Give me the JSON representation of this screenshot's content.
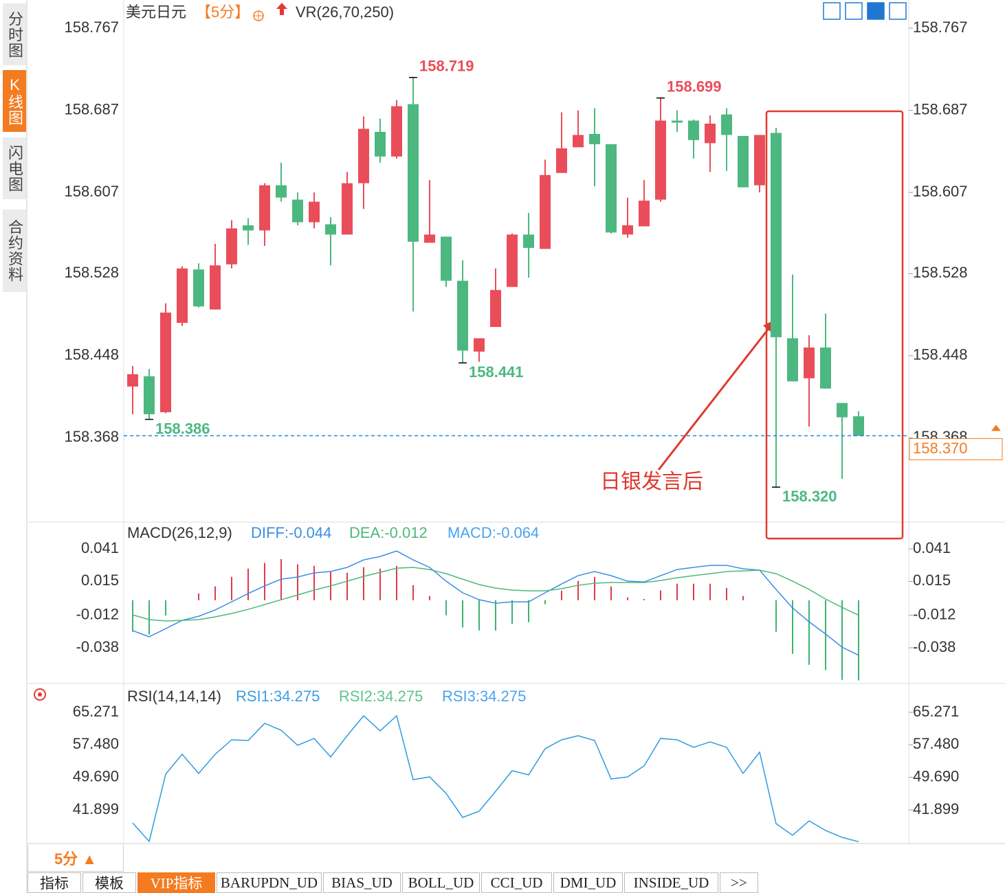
{
  "sidebar_tabs": [
    "分时图",
    "K线图",
    "闪电图",
    "合约资料"
  ],
  "chart_data": [
    {
      "type": "candlestick",
      "title": "美元日元",
      "period": "【5分】",
      "indicator": "VR(26,70,250)",
      "open": [
        158.418,
        158.428,
        158.393,
        158.48,
        158.532,
        158.493,
        158.537,
        158.575,
        158.57,
        158.614,
        158.6,
        158.578,
        158.576,
        158.566,
        158.616,
        158.666,
        158.642,
        158.693,
        158.558,
        158.564,
        158.521,
        158.452,
        158.476,
        158.515,
        158.566,
        158.552,
        158.626,
        158.651,
        158.664,
        158.654,
        158.566,
        158.574,
        158.6,
        158.677,
        158.677,
        158.655,
        158.683,
        158.662,
        158.614,
        158.665,
        158.465,
        158.426,
        158.456,
        158.402,
        158.389
      ],
      "high": [
        158.438,
        158.435,
        158.499,
        158.535,
        158.538,
        158.557,
        158.58,
        158.582,
        158.616,
        158.636,
        158.607,
        158.607,
        158.583,
        158.627,
        158.681,
        158.679,
        158.697,
        158.719,
        158.619,
        158.564,
        158.541,
        158.465,
        158.533,
        158.567,
        158.587,
        158.639,
        158.685,
        158.687,
        158.689,
        158.654,
        158.602,
        158.619,
        158.699,
        158.687,
        158.678,
        158.682,
        158.689,
        158.662,
        158.663,
        158.67,
        158.527,
        158.468,
        158.489,
        158.402,
        158.394
      ],
      "low": [
        158.391,
        158.386,
        158.392,
        158.477,
        158.495,
        158.493,
        158.533,
        158.556,
        158.555,
        158.598,
        158.575,
        158.572,
        158.536,
        158.566,
        158.591,
        158.636,
        158.64,
        158.491,
        158.558,
        158.515,
        158.441,
        158.442,
        158.476,
        158.515,
        158.524,
        158.552,
        158.626,
        158.651,
        158.613,
        158.567,
        158.563,
        158.574,
        158.598,
        158.666,
        158.64,
        158.627,
        158.628,
        158.612,
        158.607,
        158.32,
        158.423,
        158.379,
        158.416,
        158.328,
        158.37
      ],
      "close": [
        158.43,
        158.391,
        158.49,
        158.533,
        158.496,
        158.536,
        158.572,
        158.57,
        158.614,
        158.602,
        158.578,
        158.598,
        158.566,
        158.616,
        158.669,
        158.642,
        158.691,
        158.559,
        158.566,
        158.521,
        158.453,
        158.465,
        158.512,
        158.566,
        158.553,
        158.624,
        158.65,
        158.663,
        158.654,
        158.568,
        158.575,
        158.599,
        158.677,
        158.675,
        158.658,
        158.674,
        158.663,
        158.612,
        158.663,
        158.466,
        158.423,
        158.456,
        158.416,
        158.388,
        158.37
      ],
      "up_color": "#ea4d5a",
      "down_color": "#4cb880",
      "ylim": [
        158.288,
        158.767
      ],
      "yticks": [
        158.767,
        158.687,
        158.607,
        158.528,
        158.448,
        158.368
      ],
      "high_low_labels": [
        158.719,
        158.699,
        158.441,
        158.386,
        {
          "value": 158.32,
          "label": "158.320"
        }
      ],
      "current_price": {
        "value": 158.37,
        "label": "158.370"
      },
      "current_price_color": "#1e88e5",
      "annotation": "日银发言后"
    },
    {
      "type": "macd",
      "title": "MACD(26,12,9)",
      "series": [
        {
          "name": "DIFF:-0.044",
          "color": "#3a8ee6",
          "values": [
            -0.0243,
            -0.0292,
            -0.0227,
            -0.0161,
            -0.0128,
            -0.0078,
            -0.0013,
            0.0053,
            0.0114,
            0.0168,
            0.0185,
            0.0218,
            0.0229,
            0.0262,
            0.0322,
            0.0349,
            0.0393,
            0.0322,
            0.0262,
            0.0152,
            0.0059,
            0.0004,
            -0.0024,
            -0.0013,
            -0.0013,
            0.0059,
            0.013,
            0.0196,
            0.0229,
            0.0196,
            0.0152,
            0.0146,
            0.0196,
            0.0245,
            0.0262,
            0.0278,
            0.0278,
            0.0251,
            0.024,
            0.0086,
            -0.0062,
            -0.0172,
            -0.027,
            -0.0375,
            -0.044
          ]
        },
        {
          "name": "DEA:-0.012",
          "color": "#4cb87a",
          "values": [
            -0.0117,
            -0.0155,
            -0.0166,
            -0.0161,
            -0.0155,
            -0.0133,
            -0.0106,
            -0.0073,
            -0.0035,
            0.0004,
            0.0042,
            0.0081,
            0.0114,
            0.0152,
            0.019,
            0.0223,
            0.0256,
            0.0262,
            0.0245,
            0.0212,
            0.0168,
            0.0125,
            0.0097,
            0.0081,
            0.0075,
            0.0075,
            0.0092,
            0.0119,
            0.0136,
            0.0141,
            0.0141,
            0.0141,
            0.0157,
            0.0179,
            0.0196,
            0.0212,
            0.0229,
            0.0234,
            0.024,
            0.0212,
            0.0152,
            0.0086,
            0.0009,
            -0.0057,
            -0.012
          ]
        }
      ],
      "histogram": {
        "name": "MACD:-0.064",
        "color": "#4aa3f0",
        "up_color": "#e0394a",
        "down_color": "#3cb371",
        "values": [
          -0.0252,
          -0.0274,
          -0.0122,
          0,
          0.0054,
          0.011,
          0.0186,
          0.0252,
          0.0298,
          0.0328,
          0.0286,
          0.0274,
          0.023,
          0.022,
          0.0264,
          0.0252,
          0.0274,
          0.012,
          0.0034,
          -0.012,
          -0.0218,
          -0.0242,
          -0.0242,
          -0.0188,
          -0.0176,
          -0.0032,
          0.0076,
          0.0154,
          0.0186,
          0.011,
          0.0022,
          0.001,
          0.0078,
          0.0132,
          0.0132,
          0.0132,
          0.0098,
          0.0034,
          0,
          -0.0252,
          -0.0428,
          -0.0516,
          -0.0558,
          -0.0636,
          -0.064
        ]
      },
      "ylim": [
        -0.0654,
        0.0613
      ],
      "yticks": [
        0.041,
        0.015,
        -0.012,
        -0.038
      ]
    },
    {
      "type": "line",
      "title": "RSI(14,14,14)",
      "legend": [
        {
          "name": "RSI1:34.275",
          "color": "#3a9ee6"
        },
        {
          "name": "RSI2:34.275",
          "color": "#5cc48a"
        },
        {
          "name": "RSI3:34.275",
          "color": "#4aa3f0"
        }
      ],
      "color": "#2e9be0",
      "values": [
        38.77,
        34.33,
        50.46,
        55.23,
        50.62,
        55.23,
        58.69,
        58.52,
        62.64,
        60.99,
        57.37,
        59.02,
        54.57,
        59.67,
        64.45,
        60.83,
        64.45,
        49.14,
        49.8,
        45.85,
        40.09,
        41.57,
        46.34,
        51.28,
        50.29,
        56.55,
        58.69,
        59.67,
        58.52,
        49.3,
        49.8,
        52.43,
        59.02,
        58.69,
        56.88,
        58.19,
        56.88,
        50.62,
        55.72,
        38.6,
        35.81,
        39.26,
        36.96,
        35.31,
        34.275
      ],
      "ylim": [
        33.83,
        71.36
      ],
      "yticks": [
        65.271,
        {
          "value": 57.48,
          "label": "57.480"
        },
        {
          "value": 49.69,
          "label": "49.690"
        },
        41.899
      ]
    }
  ],
  "bottom_bar": {
    "period": "5分 ▲",
    "tabs": [
      "指标",
      "模板",
      "VIP指标",
      "BARUPDN_UD",
      "BIAS_UD",
      "BOLL_UD",
      "CCI_UD",
      "DMI_UD",
      "INSIDE_UD",
      ">>"
    ]
  }
}
